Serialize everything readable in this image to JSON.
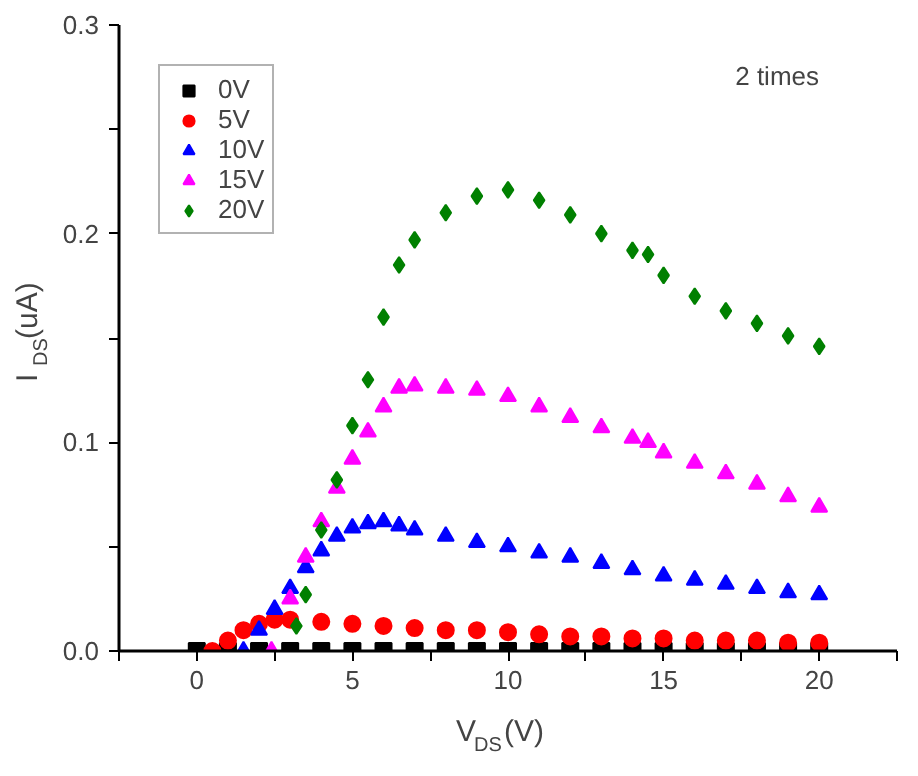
{
  "chart_data": {
    "type": "scatter",
    "xlabel": "V$_{DS}$(V)",
    "ylabel": "I$_{DS}$(uA)",
    "annotations": [
      "2 times"
    ],
    "xlim": [
      -2.5,
      22.5
    ],
    "ylim": [
      0,
      0.3
    ],
    "xticks": [
      {
        "value": -2.5,
        "label": null
      },
      0,
      {
        "value": 2.5,
        "label": null
      },
      5,
      {
        "value": 7.5,
        "label": null
      },
      10,
      {
        "value": 12.5,
        "label": null
      },
      15,
      {
        "value": 17.5,
        "label": null
      },
      20,
      {
        "value": 22.5,
        "label": null
      }
    ],
    "yticks": [
      {
        "value": 0,
        "label": "0.0"
      },
      {
        "value": 0.05,
        "label": null
      },
      0.1,
      {
        "value": 0.15,
        "label": null
      },
      0.2,
      {
        "value": 0.25,
        "label": null
      },
      0.3
    ],
    "grid": false,
    "legend": "top left",
    "series": [
      {
        "name": "0V",
        "color": "#000000",
        "marker": "square",
        "x": [
          0,
          1,
          2,
          3,
          4,
          5,
          6,
          7,
          8,
          9,
          10,
          11,
          12,
          13,
          14,
          15,
          16,
          17,
          18,
          19,
          20
        ],
        "values": [
          0,
          0,
          0,
          0,
          0,
          0,
          0,
          0,
          0,
          0,
          0,
          0,
          0,
          0,
          0,
          0,
          0,
          0,
          0,
          0,
          0
        ]
      },
      {
        "name": "5V",
        "color": "#ff0000",
        "marker": "circle",
        "x": [
          0.5,
          1,
          1.5,
          2,
          2.5,
          3,
          4,
          5,
          6,
          7,
          8,
          9,
          10,
          11,
          12,
          13,
          14,
          15,
          16,
          17,
          18,
          19,
          20
        ],
        "values": [
          0,
          0.005,
          0.01,
          0.013,
          0.015,
          0.015,
          0.014,
          0.013,
          0.012,
          0.011,
          0.01,
          0.01,
          0.009,
          0.008,
          0.007,
          0.007,
          0.006,
          0.006,
          0.005,
          0.005,
          0.005,
          0.004,
          0.004
        ]
      },
      {
        "name": "10V",
        "color": "#0000ff",
        "marker": "triangle",
        "x": [
          1.5,
          2,
          2.5,
          3,
          3.5,
          4,
          4.5,
          5,
          5.5,
          6,
          6.5,
          7,
          8,
          9,
          10,
          11,
          12,
          13,
          14,
          15,
          16,
          17,
          18,
          19,
          20
        ],
        "values": [
          0,
          0.01,
          0.02,
          0.03,
          0.04,
          0.048,
          0.055,
          0.059,
          0.061,
          0.062,
          0.06,
          0.058,
          0.055,
          0.052,
          0.05,
          0.047,
          0.045,
          0.042,
          0.039,
          0.036,
          0.034,
          0.032,
          0.03,
          0.028,
          0.027
        ]
      },
      {
        "name": "15V",
        "color": "#ff00ff",
        "marker": "triangle",
        "x": [
          2.4,
          3,
          3.5,
          4,
          4.5,
          5,
          5.5,
          6,
          6.5,
          7,
          8,
          9,
          10,
          11,
          12,
          13,
          14,
          14.5,
          15,
          16,
          17,
          18,
          19,
          20
        ],
        "values": [
          0,
          0.025,
          0.045,
          0.062,
          0.078,
          0.092,
          0.105,
          0.117,
          0.126,
          0.127,
          0.126,
          0.125,
          0.122,
          0.117,
          0.112,
          0.107,
          0.102,
          0.1,
          0.095,
          0.09,
          0.085,
          0.08,
          0.074,
          0.069
        ]
      },
      {
        "name": "20V",
        "color": "#008000",
        "marker": "diamond",
        "x": [
          3.2,
          3.5,
          4,
          4.5,
          5,
          5.5,
          6,
          6.5,
          7,
          8,
          9,
          10,
          11,
          12,
          13,
          14,
          14.5,
          15,
          16,
          17,
          18,
          19,
          20
        ],
        "values": [
          0.012,
          0.027,
          0.058,
          0.082,
          0.108,
          0.13,
          0.16,
          0.185,
          0.197,
          0.21,
          0.218,
          0.221,
          0.216,
          0.209,
          0.2,
          0.192,
          0.19,
          0.18,
          0.17,
          0.163,
          0.157,
          0.151,
          0.146
        ]
      }
    ]
  }
}
